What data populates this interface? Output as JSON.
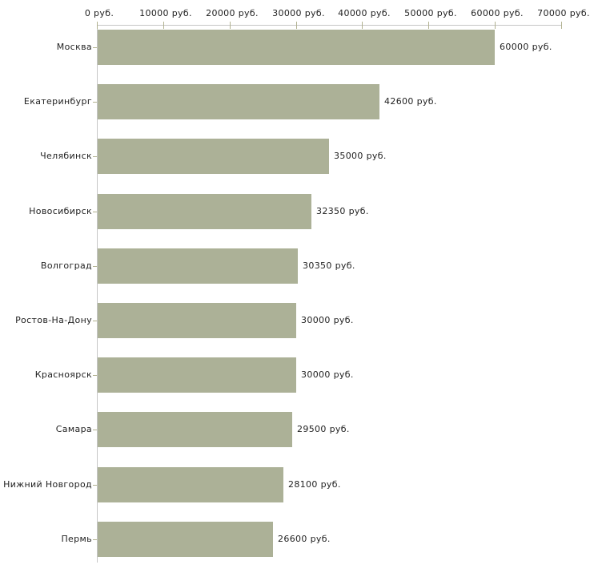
{
  "chart_data": {
    "type": "bar",
    "orientation": "horizontal",
    "title": "",
    "xlabel": "",
    "ylabel": "",
    "categories": [
      "Москва",
      "Екатеринбург",
      "Челябинск",
      "Новосибирск",
      "Волгоград",
      "Ростов-На-Дону",
      "Красноярск",
      "Самара",
      "Нижний Новгород",
      "Пермь"
    ],
    "values": [
      60000,
      42600,
      35000,
      32350,
      30350,
      30000,
      30000,
      29500,
      28100,
      26600
    ],
    "value_labels": [
      "60000 руб.",
      "42600 руб.",
      "35000 руб.",
      "32350 руб.",
      "30350 руб.",
      "30000 руб.",
      "30000 руб.",
      "29500 руб.",
      "28100 руб.",
      "26600 руб."
    ],
    "x_ticks": [
      0,
      10000,
      20000,
      30000,
      40000,
      50000,
      60000,
      70000
    ],
    "x_tick_labels": [
      "0 руб.",
      "10000 руб.",
      "20000 руб.",
      "30000 руб.",
      "40000 руб.",
      "50000 руб.",
      "60000 руб.",
      "70000 руб."
    ],
    "xlim": [
      0,
      70000
    ],
    "grid": false,
    "legend": null,
    "bar_color": "#acb197",
    "axis_line_color": "#c6c6c6",
    "tick_color": "#b1b190",
    "text_color": "#222222",
    "background_color": "#ffffff"
  }
}
